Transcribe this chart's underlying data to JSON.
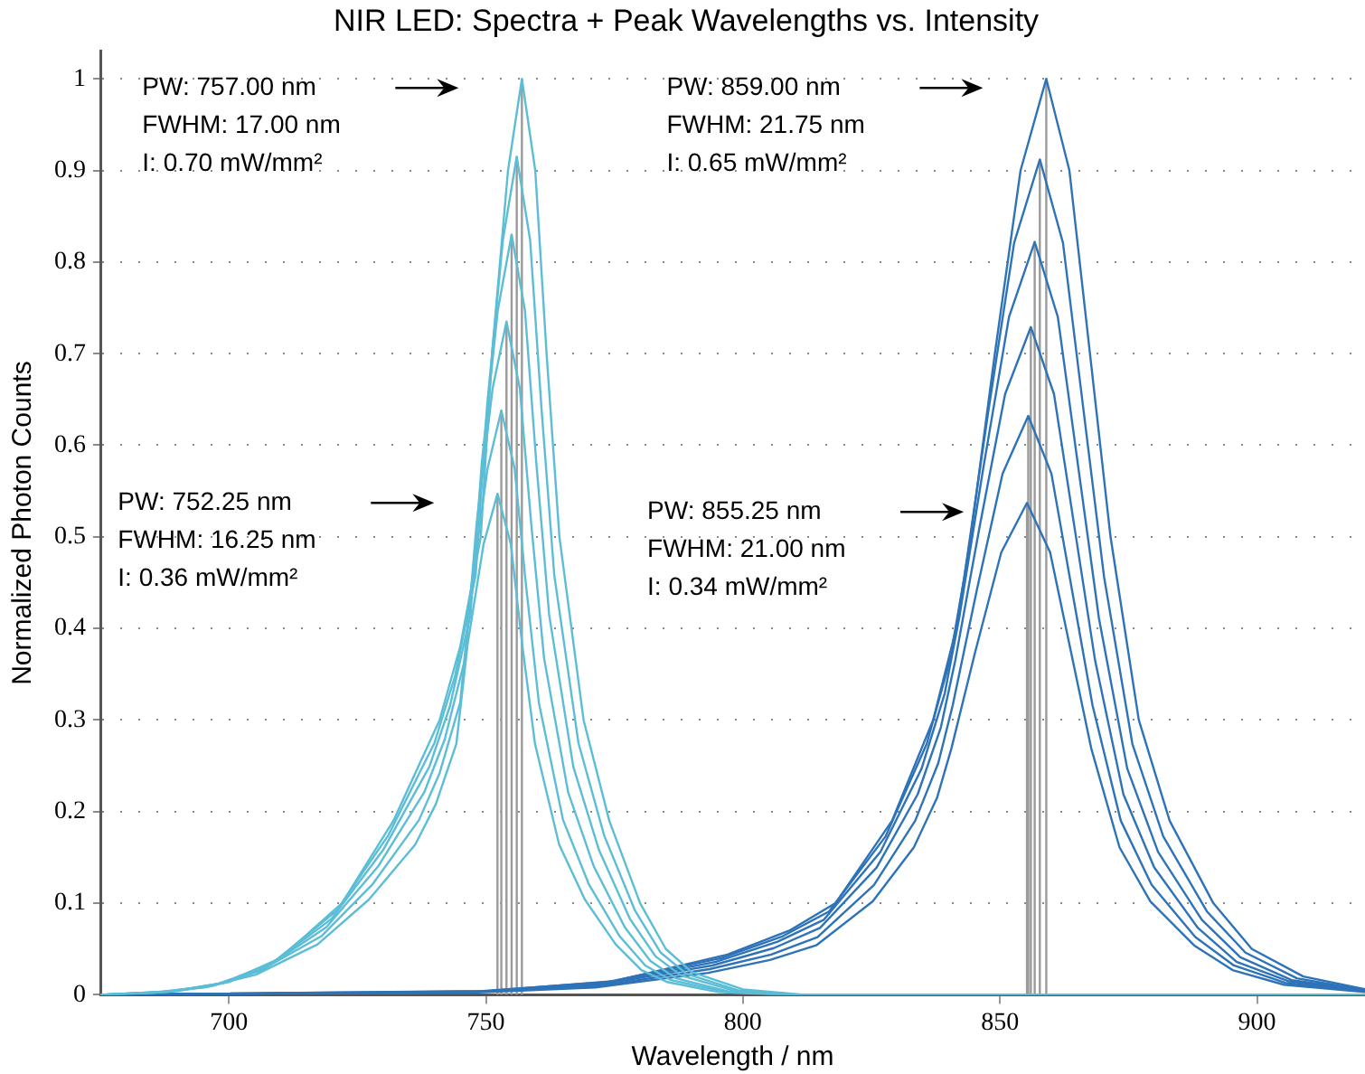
{
  "chart_data": {
    "type": "line",
    "title": "NIR LED: Spectra + Peak Wavelengths vs. Intensity",
    "xlabel": "Wavelength / nm",
    "ylabel": "Normalized Photon Counts",
    "xlim": [
      675,
      921
    ],
    "xticks": [
      700,
      750,
      800,
      850,
      900
    ],
    "ylim": [
      0,
      1.03
    ],
    "yticks": [
      0,
      0.1,
      0.2,
      0.3,
      0.4,
      0.5,
      0.6,
      0.7,
      0.8,
      0.9,
      1
    ],
    "grid": "y",
    "legend": false,
    "marker": "none",
    "line_style": "solid",
    "annotations": [
      "PW: 757.00 nm\nFWHM: 17.00 nm\nI: 0.70 mW/mm²",
      "PW: 752.25 nm\nFWHM: 16.25 nm\nI: 0.36 mW/mm²",
      "PW: 859.00 nm\nFWHM: 21.75 nm\nI: 0.65 mW/mm²",
      "PW: 855.25 nm\nFWHM: 21.00 nm\nI: 0.34 mW/mm²"
    ],
    "series": [
      {
        "color": "#5bbdd6",
        "x": [
          675,
          685.25,
          695.25,
          705.25,
          717.25,
          727.25,
          736.25,
          740.25,
          744.25,
          746.45,
          749.55,
          752.25,
          754.85,
          757.05,
          759.55,
          764.25,
          769.25,
          775.25,
          780.25,
          785.25,
          795.25,
          807.25,
          921
        ],
        "values": [
          0,
          0.002,
          0.008,
          0.022,
          0.055,
          0.104,
          0.164,
          0.208,
          0.274,
          0.383,
          0.492,
          0.547,
          0.492,
          0.383,
          0.274,
          0.164,
          0.104,
          0.055,
          0.027,
          0.014,
          0.003,
          0,
          0
        ]
      },
      {
        "color": "#5bbdd6",
        "x": [
          675,
          686,
          696,
          706,
          718,
          728,
          737,
          741,
          745,
          747.2,
          750.3,
          753,
          755.6,
          757.8,
          760.3,
          765,
          770,
          776,
          781,
          786,
          796,
          808,
          921
        ],
        "values": [
          0,
          0.003,
          0.009,
          0.026,
          0.064,
          0.121,
          0.191,
          0.242,
          0.319,
          0.447,
          0.574,
          0.638,
          0.574,
          0.447,
          0.319,
          0.191,
          0.121,
          0.064,
          0.032,
          0.016,
          0.004,
          0,
          0
        ]
      },
      {
        "color": "#5bbdd6",
        "x": [
          675,
          687,
          697,
          707,
          719,
          729,
          738,
          742,
          746,
          748.2,
          751.3,
          754,
          756.6,
          758.8,
          761.3,
          766,
          771,
          777,
          782,
          787,
          797,
          809,
          921
        ],
        "values": [
          0,
          0.003,
          0.01,
          0.029,
          0.074,
          0.14,
          0.221,
          0.279,
          0.368,
          0.515,
          0.662,
          0.735,
          0.662,
          0.515,
          0.368,
          0.221,
          0.14,
          0.074,
          0.037,
          0.018,
          0.004,
          0,
          0
        ]
      },
      {
        "color": "#5bbdd6",
        "x": [
          675,
          688,
          698,
          708,
          720,
          730,
          739,
          743,
          747,
          749.2,
          752.3,
          755,
          757.6,
          759.8,
          762.3,
          767,
          772,
          778,
          783,
          788,
          798,
          810,
          921
        ],
        "values": [
          0,
          0.003,
          0.012,
          0.033,
          0.083,
          0.158,
          0.249,
          0.315,
          0.415,
          0.581,
          0.747,
          0.83,
          0.747,
          0.581,
          0.415,
          0.249,
          0.158,
          0.083,
          0.042,
          0.021,
          0.005,
          0,
          0
        ]
      },
      {
        "color": "#5bbdd6",
        "x": [
          675,
          689,
          699,
          709,
          721,
          731,
          740,
          744,
          748,
          750.2,
          753.3,
          756,
          758.6,
          760.8,
          763.3,
          768,
          773,
          779,
          784,
          789,
          799,
          811,
          921
        ],
        "values": [
          0,
          0.004,
          0.013,
          0.037,
          0.092,
          0.174,
          0.275,
          0.348,
          0.458,
          0.641,
          0.824,
          0.915,
          0.824,
          0.641,
          0.458,
          0.275,
          0.174,
          0.092,
          0.046,
          0.023,
          0.005,
          0,
          0
        ]
      },
      {
        "color": "#5bbdd6",
        "x": [
          675,
          690,
          700,
          710,
          722,
          732,
          741,
          745,
          749,
          751.2,
          754.3,
          757,
          759.6,
          761.8,
          764.3,
          769,
          774,
          780,
          785,
          790,
          800,
          812,
          921
        ],
        "values": [
          0,
          0.004,
          0.014,
          0.04,
          0.1,
          0.19,
          0.3,
          0.38,
          0.5,
          0.7,
          0.9,
          1,
          0.9,
          0.7,
          0.5,
          0.3,
          0.19,
          0.1,
          0.05,
          0.025,
          0.006,
          0,
          0
        ]
      },
      {
        "color": "#2e73b8",
        "x": [
          675,
          746.25,
          771.25,
          793.25,
          805.25,
          814.25,
          825.25,
          833.25,
          837.75,
          840.55,
          845.25,
          850.25,
          855.25,
          859.75,
          863.75,
          867.75,
          873.25,
          879.25,
          887.75,
          895.25,
          905.25,
          921
        ],
        "values": [
          0,
          0.002,
          0.008,
          0.024,
          0.038,
          0.054,
          0.102,
          0.161,
          0.215,
          0.269,
          0.376,
          0.483,
          0.537,
          0.483,
          0.376,
          0.269,
          0.161,
          0.102,
          0.054,
          0.027,
          0.011,
          0.003
        ]
      },
      {
        "color": "#2e73b8",
        "x": [
          675,
          746.5,
          771.5,
          793.5,
          805.5,
          814.5,
          825.5,
          833.5,
          838,
          840.8,
          845.5,
          850.5,
          855.5,
          860,
          864,
          868,
          873.5,
          879.5,
          888,
          895.5,
          905.5,
          921
        ],
        "values": [
          0,
          0.003,
          0.009,
          0.028,
          0.044,
          0.063,
          0.12,
          0.19,
          0.253,
          0.316,
          0.442,
          0.569,
          0.632,
          0.569,
          0.442,
          0.316,
          0.19,
          0.12,
          0.063,
          0.032,
          0.013,
          0.004
        ]
      },
      {
        "color": "#2e73b8",
        "x": [
          675,
          747,
          772,
          794,
          806,
          815,
          826,
          834,
          838.5,
          841.3,
          846,
          851,
          856,
          860.5,
          864.5,
          868.5,
          874,
          880,
          888.5,
          896,
          906,
          921
        ],
        "values": [
          0,
          0.003,
          0.011,
          0.032,
          0.051,
          0.073,
          0.139,
          0.219,
          0.292,
          0.365,
          0.51,
          0.656,
          0.729,
          0.656,
          0.51,
          0.365,
          0.219,
          0.139,
          0.073,
          0.036,
          0.015,
          0.004
        ]
      },
      {
        "color": "#2e73b8",
        "x": [
          675,
          747.75,
          772.75,
          794.75,
          806.75,
          815.75,
          826.75,
          834.75,
          839.25,
          842.05,
          846.75,
          851.75,
          856.75,
          861.25,
          865.25,
          869.25,
          874.75,
          880.75,
          889.25,
          896.75,
          906.75,
          921
        ],
        "values": [
          0,
          0.003,
          0.012,
          0.036,
          0.058,
          0.082,
          0.156,
          0.247,
          0.329,
          0.411,
          0.575,
          0.74,
          0.822,
          0.74,
          0.575,
          0.411,
          0.247,
          0.156,
          0.082,
          0.041,
          0.016,
          0.005
        ]
      },
      {
        "color": "#2e73b8",
        "x": [
          675,
          748.75,
          773.75,
          795.75,
          807.75,
          816.75,
          827.75,
          835.75,
          840.25,
          843.05,
          847.75,
          852.75,
          857.75,
          862.25,
          866.25,
          870.25,
          875.75,
          881.75,
          890.25,
          897.75,
          907.75,
          921
        ],
        "values": [
          0,
          0.004,
          0.014,
          0.04,
          0.064,
          0.091,
          0.173,
          0.274,
          0.365,
          0.456,
          0.638,
          0.821,
          0.912,
          0.821,
          0.638,
          0.456,
          0.274,
          0.173,
          0.091,
          0.046,
          0.018,
          0.005
        ]
      },
      {
        "color": "#2e73b8",
        "x": [
          675,
          750,
          775,
          797,
          809,
          818,
          829,
          837,
          841.5,
          844.3,
          849,
          854,
          859,
          863.5,
          867.5,
          871.5,
          877,
          883,
          891.5,
          899,
          909,
          921
        ],
        "values": [
          0,
          0.004,
          0.015,
          0.044,
          0.07,
          0.1,
          0.19,
          0.3,
          0.4,
          0.5,
          0.7,
          0.9,
          1,
          0.9,
          0.7,
          0.5,
          0.3,
          0.19,
          0.1,
          0.05,
          0.02,
          0.006
        ]
      },
      {
        "color": "#9a9a9a",
        "x": [
          752.25,
          752.25
        ],
        "values": [
          0,
          0.547
        ]
      },
      {
        "color": "#9a9a9a",
        "x": [
          753,
          753
        ],
        "values": [
          0,
          0.638
        ]
      },
      {
        "color": "#9a9a9a",
        "x": [
          754,
          754
        ],
        "values": [
          0,
          0.735
        ]
      },
      {
        "color": "#9a9a9a",
        "x": [
          755,
          755
        ],
        "values": [
          0,
          0.83
        ]
      },
      {
        "color": "#9a9a9a",
        "x": [
          756,
          756
        ],
        "values": [
          0,
          0.915
        ]
      },
      {
        "color": "#9a9a9a",
        "x": [
          757,
          757
        ],
        "values": [
          0,
          1
        ]
      },
      {
        "color": "#9a9a9a",
        "x": [
          855.25,
          855.25
        ],
        "values": [
          0,
          0.537
        ]
      },
      {
        "color": "#9a9a9a",
        "x": [
          855.5,
          855.5
        ],
        "values": [
          0,
          0.632
        ]
      },
      {
        "color": "#9a9a9a",
        "x": [
          856,
          856
        ],
        "values": [
          0,
          0.729
        ]
      },
      {
        "color": "#9a9a9a",
        "x": [
          856.75,
          856.75
        ],
        "values": [
          0,
          0.822
        ]
      },
      {
        "color": "#9a9a9a",
        "x": [
          857.75,
          857.75
        ],
        "values": [
          0,
          0.912
        ]
      },
      {
        "color": "#9a9a9a",
        "x": [
          859,
          859
        ],
        "values": [
          0,
          1
        ]
      }
    ]
  }
}
